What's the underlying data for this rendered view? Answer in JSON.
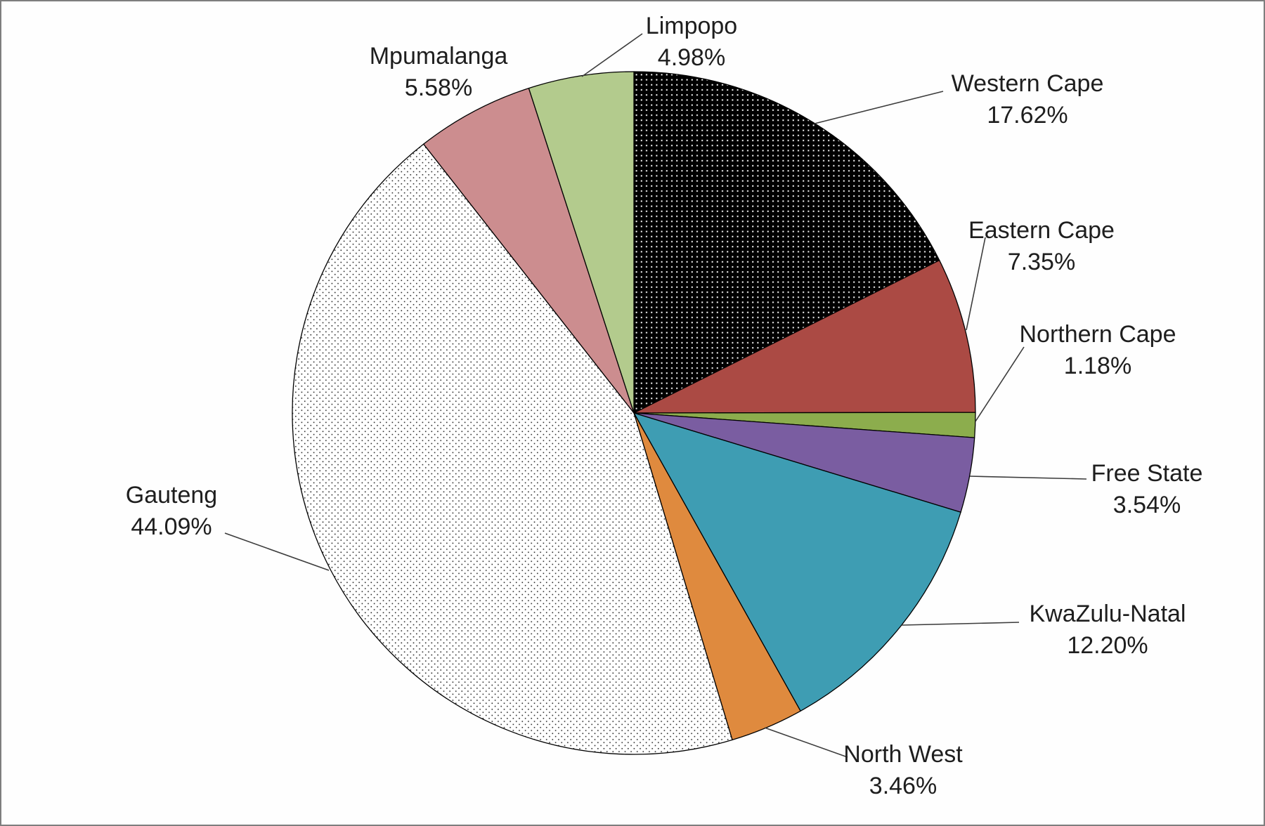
{
  "chart_data": {
    "type": "pie",
    "title": "",
    "categories": [
      "Western Cape",
      "Eastern Cape",
      "Northern Cape",
      "Free State",
      "KwaZulu-Natal",
      "North West",
      "Gauteng",
      "Mpumalanga",
      "Limpopo"
    ],
    "values": [
      17.62,
      7.35,
      1.18,
      3.54,
      12.2,
      3.46,
      44.09,
      5.58,
      4.98
    ],
    "value_labels": [
      "17.62%",
      "7.35%",
      "1.18%",
      "3.54%",
      "12.20%",
      "3.46%",
      "44.09%",
      "5.58%",
      "4.98%"
    ],
    "unit": "%",
    "start_angle_deg": 0,
    "direction": "clockwise",
    "legend_position": "none",
    "label_style": "outside with leader lines",
    "colors": [
      "dots-white-on-black",
      "#AB4A44",
      "#8CAD4D",
      "#7A5DA1",
      "#3E9DB3",
      "#DF8A3E",
      "dots-black-on-white",
      "#CC8D8F",
      "#B3CB8D"
    ]
  },
  "styles": {
    "background": "#FEFEFE",
    "frame_border_color": "#7E7E7E",
    "slice_outline": "#000000",
    "label_color": "#1E1E1E",
    "leader_line_color": "#3C3C3C"
  }
}
